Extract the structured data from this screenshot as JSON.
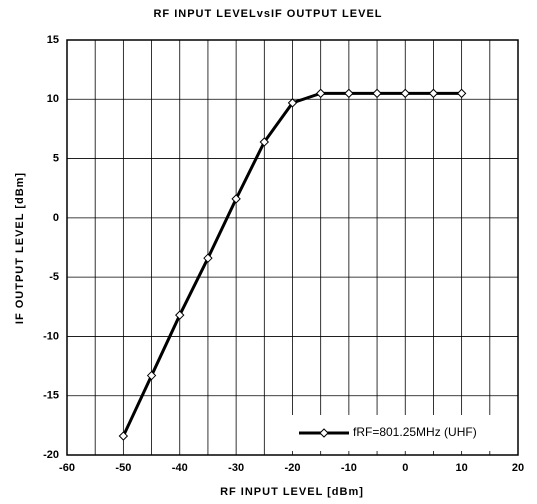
{
  "chart_data": {
    "type": "line",
    "title": "RF INPUT LEVELvsIF OUTPUT LEVEL",
    "x_label": "RF INPUT LEVEL [dBm]",
    "y_label": "IF OUTPUT LEVEL [dBm]",
    "x": [
      -50,
      -45,
      -40,
      -35,
      -30,
      -25,
      -20,
      -15,
      -10,
      -5,
      0,
      5,
      10
    ],
    "series": [
      {
        "name": "fRF=801.25MHz (UHF)",
        "color": "#000000",
        "values": [
          -18.4,
          -13.3,
          -8.2,
          -3.4,
          1.6,
          6.4,
          9.7,
          10.5,
          10.5,
          10.5,
          10.5,
          10.5,
          10.5
        ]
      }
    ],
    "xlim": [
      -60,
      20
    ],
    "xticks": [
      -60,
      -50,
      -40,
      -30,
      -20,
      -10,
      0,
      10,
      20
    ],
    "x_minor_grid": [
      -55,
      -45,
      -35,
      -25,
      -15,
      -5,
      5,
      15
    ],
    "ylim": [
      -20,
      15
    ],
    "yticks": [
      -20,
      -15,
      -10,
      -5,
      0,
      5,
      10,
      15
    ],
    "grid": true,
    "legend": "lower right"
  }
}
